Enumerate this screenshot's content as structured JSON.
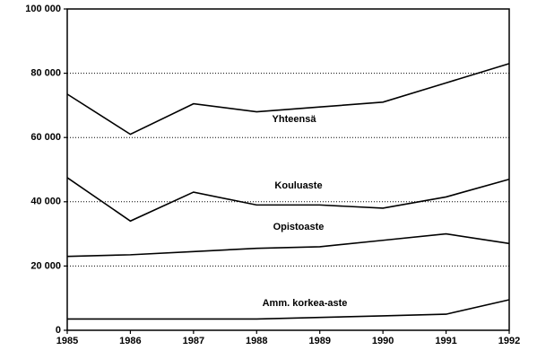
{
  "chart_data": {
    "type": "line",
    "x": [
      1985,
      1986,
      1987,
      1988,
      1989,
      1990,
      1991,
      1992
    ],
    "xlim": [
      1985,
      1992
    ],
    "xticks": [
      1985,
      1986,
      1987,
      1988,
      1989,
      1990,
      1991,
      1992
    ],
    "ylim": [
      0,
      100000
    ],
    "yticks": [
      0,
      {
        "value": 20000,
        "label": "20 000"
      },
      {
        "value": 40000,
        "label": "40 000"
      },
      {
        "value": 60000,
        "label": "60 000"
      },
      {
        "value": 80000,
        "label": "80 000"
      },
      {
        "value": 100000,
        "label": "100 000"
      }
    ],
    "grid": true,
    "series": [
      {
        "name": "Yhteensä",
        "color": "#000000",
        "values": [
          73500,
          61000,
          70500,
          68000,
          69500,
          71000,
          77000,
          83000
        ]
      },
      {
        "name": "Kouluaste",
        "color": "#000000",
        "values": [
          47500,
          34000,
          43000,
          39000,
          39000,
          38000,
          41500,
          47000
        ]
      },
      {
        "name": "Opistoaste",
        "color": "#000000",
        "values": [
          23000,
          23500,
          24500,
          25500,
          26000,
          28000,
          30000,
          27000
        ]
      },
      {
        "name": "Amm. korkea-aste",
        "color": "#000000",
        "values": [
          3500,
          3500,
          3500,
          3500,
          4000,
          4500,
          5000,
          9500
        ]
      }
    ]
  }
}
